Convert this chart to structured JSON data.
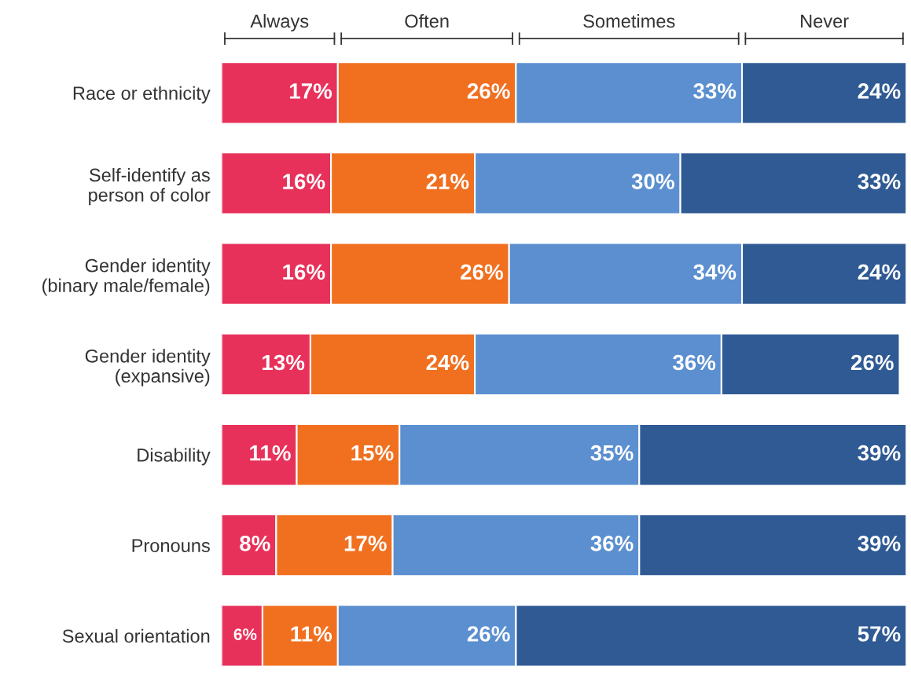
{
  "chart_data": {
    "type": "bar",
    "orientation": "horizontal",
    "stacked": true,
    "legend": "top",
    "tick_labels": "y",
    "xlim": [
      0,
      100
    ],
    "categories": [
      "Race or ethnicity",
      "Self-identify as\nperson of color",
      "Gender identity\n(binary male/female)",
      "Gender identity\n(expansive)",
      "Disability",
      "Pronouns",
      "Sexual orientation"
    ],
    "series": [
      {
        "name": "Always",
        "color": "#e8315a",
        "values": [
          17,
          16,
          16,
          13,
          11,
          8,
          6
        ],
        "value_labels": [
          "17%",
          "16%",
          "16%",
          "13%",
          "11%",
          "8%",
          "6%"
        ]
      },
      {
        "name": "Often",
        "color": "#f07020",
        "values": [
          26,
          21,
          26,
          24,
          15,
          17,
          11
        ],
        "value_labels": [
          "26%",
          "21%",
          "26%",
          "24%",
          "15%",
          "17%",
          "11%"
        ]
      },
      {
        "name": "Sometimes",
        "color": "#5b8fd0",
        "values": [
          33,
          30,
          34,
          36,
          35,
          36,
          26
        ],
        "value_labels": [
          "33%",
          "30%",
          "34%",
          "36%",
          "35%",
          "36%",
          "26%"
        ]
      },
      {
        "name": "Never",
        "color": "#2f5a94",
        "values": [
          24,
          33,
          24,
          26,
          39,
          39,
          57
        ],
        "value_labels": [
          "24%",
          "33%",
          "24%",
          "26%",
          "39%",
          "39%",
          "57%"
        ]
      }
    ]
  }
}
